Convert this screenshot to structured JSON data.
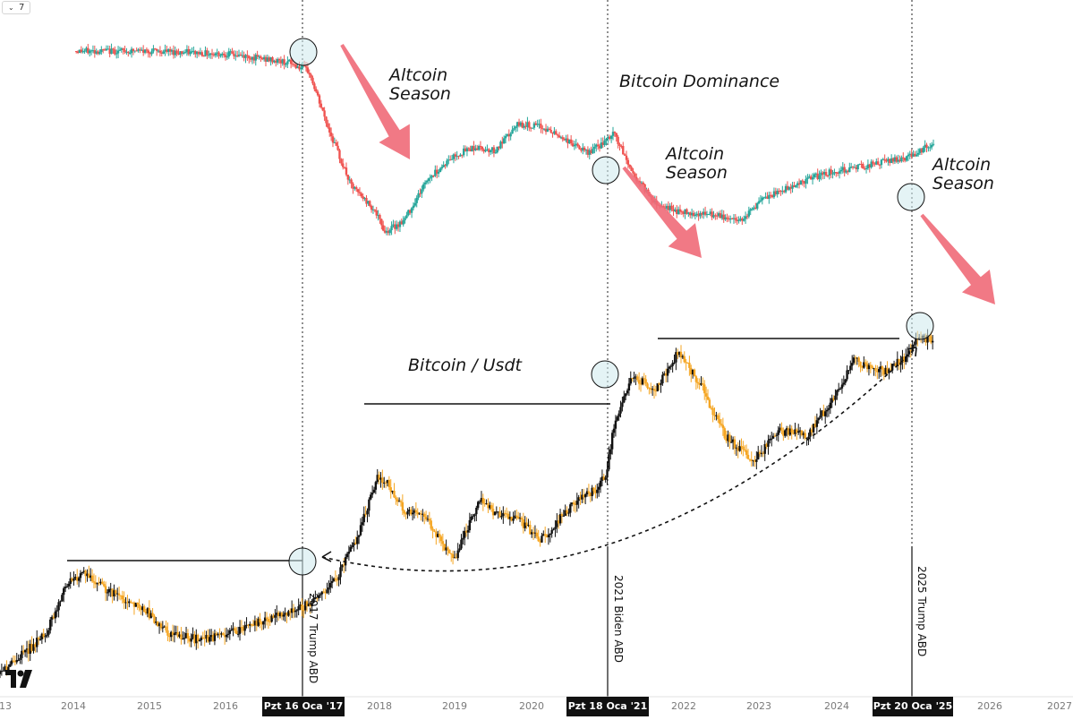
{
  "toolbar": {
    "collapse_icon": "chevron-down-icon",
    "count_value": "7"
  },
  "annotations": {
    "altcoin_season_1": "Altcoin\nSeason",
    "altcoin_season_2": "Altcoin\nSeason",
    "altcoin_season_3": "Altcoin\nSeason",
    "bitcoin_dominance": "Bitcoin Dominance",
    "bitcoin_usdt": "Bitcoin / Usdt"
  },
  "event_lines": [
    {
      "label": "2017 Trump ABD",
      "date": "Pzt 16 Oca '17"
    },
    {
      "label": "2021 Biden ABD",
      "date": "Pzt 18 Oca '21"
    },
    {
      "label": "2025 Trump ABD",
      "date": "Pzt 20 Oca '25"
    }
  ],
  "x_axis": {
    "tick_labels": [
      "13",
      "2014",
      "2015",
      "2016",
      "2018",
      "2019",
      "2020",
      "2022",
      "2023",
      "2024",
      "2026",
      "2027"
    ]
  },
  "colors": {
    "dominance_up": "#26a69a",
    "dominance_down": "#ef5350",
    "btc_up": "#111111",
    "btc_down": "#f5a623",
    "arrow": "#f06a78",
    "circle_fill": "#cde9ec",
    "axis_text": "#7a7a7a"
  },
  "chart_data": [
    {
      "type": "candlestick",
      "name": "Bitcoin Dominance",
      "x_unit": "year",
      "x": [
        2014.0,
        2015.0,
        2016.0,
        2016.8,
        2017.05,
        2017.3,
        2017.6,
        2017.9,
        2018.05,
        2018.3,
        2018.6,
        2018.95,
        2019.2,
        2019.5,
        2019.8,
        2020.1,
        2020.4,
        2020.7,
        2020.95,
        2021.05,
        2021.3,
        2021.6,
        2021.9,
        2022.3,
        2022.7,
        2023.0,
        2023.4,
        2023.8,
        2024.2,
        2024.6,
        2024.95,
        2025.05,
        2025.25
      ],
      "values": [
        96,
        96,
        95,
        92,
        89,
        70,
        50,
        42,
        34,
        38,
        52,
        60,
        63,
        62,
        71,
        70,
        66,
        61,
        65,
        68,
        54,
        44,
        41,
        40,
        38,
        45,
        50,
        54,
        56,
        58,
        60,
        62,
        64
      ]
    },
    {
      "type": "candlestick",
      "name": "Bitcoin / Usdt",
      "x_unit": "year",
      "x": [
        2013.0,
        2013.3,
        2013.6,
        2013.9,
        2014.1,
        2014.5,
        2014.9,
        2015.2,
        2015.6,
        2015.9,
        2016.3,
        2016.7,
        2016.95,
        2017.05,
        2017.4,
        2017.7,
        2017.95,
        2018.05,
        2018.3,
        2018.6,
        2018.95,
        2019.3,
        2019.5,
        2019.8,
        2020.1,
        2020.5,
        2020.8,
        2020.95,
        2021.05,
        2021.3,
        2021.6,
        2021.9,
        2022.2,
        2022.5,
        2022.9,
        2023.2,
        2023.6,
        2023.9,
        2024.2,
        2024.6,
        2024.9,
        2025.05,
        2025.25
      ],
      "values": [
        20,
        40,
        60,
        115,
        120,
        100,
        85,
        60,
        55,
        58,
        70,
        80,
        88,
        90,
        115,
        160,
        220,
        215,
        185,
        175,
        135,
        195,
        180,
        175,
        155,
        190,
        205,
        220,
        270,
        320,
        305,
        345,
        310,
        260,
        235,
        265,
        260,
        295,
        335,
        325,
        340,
        360,
        355
      ]
    }
  ]
}
